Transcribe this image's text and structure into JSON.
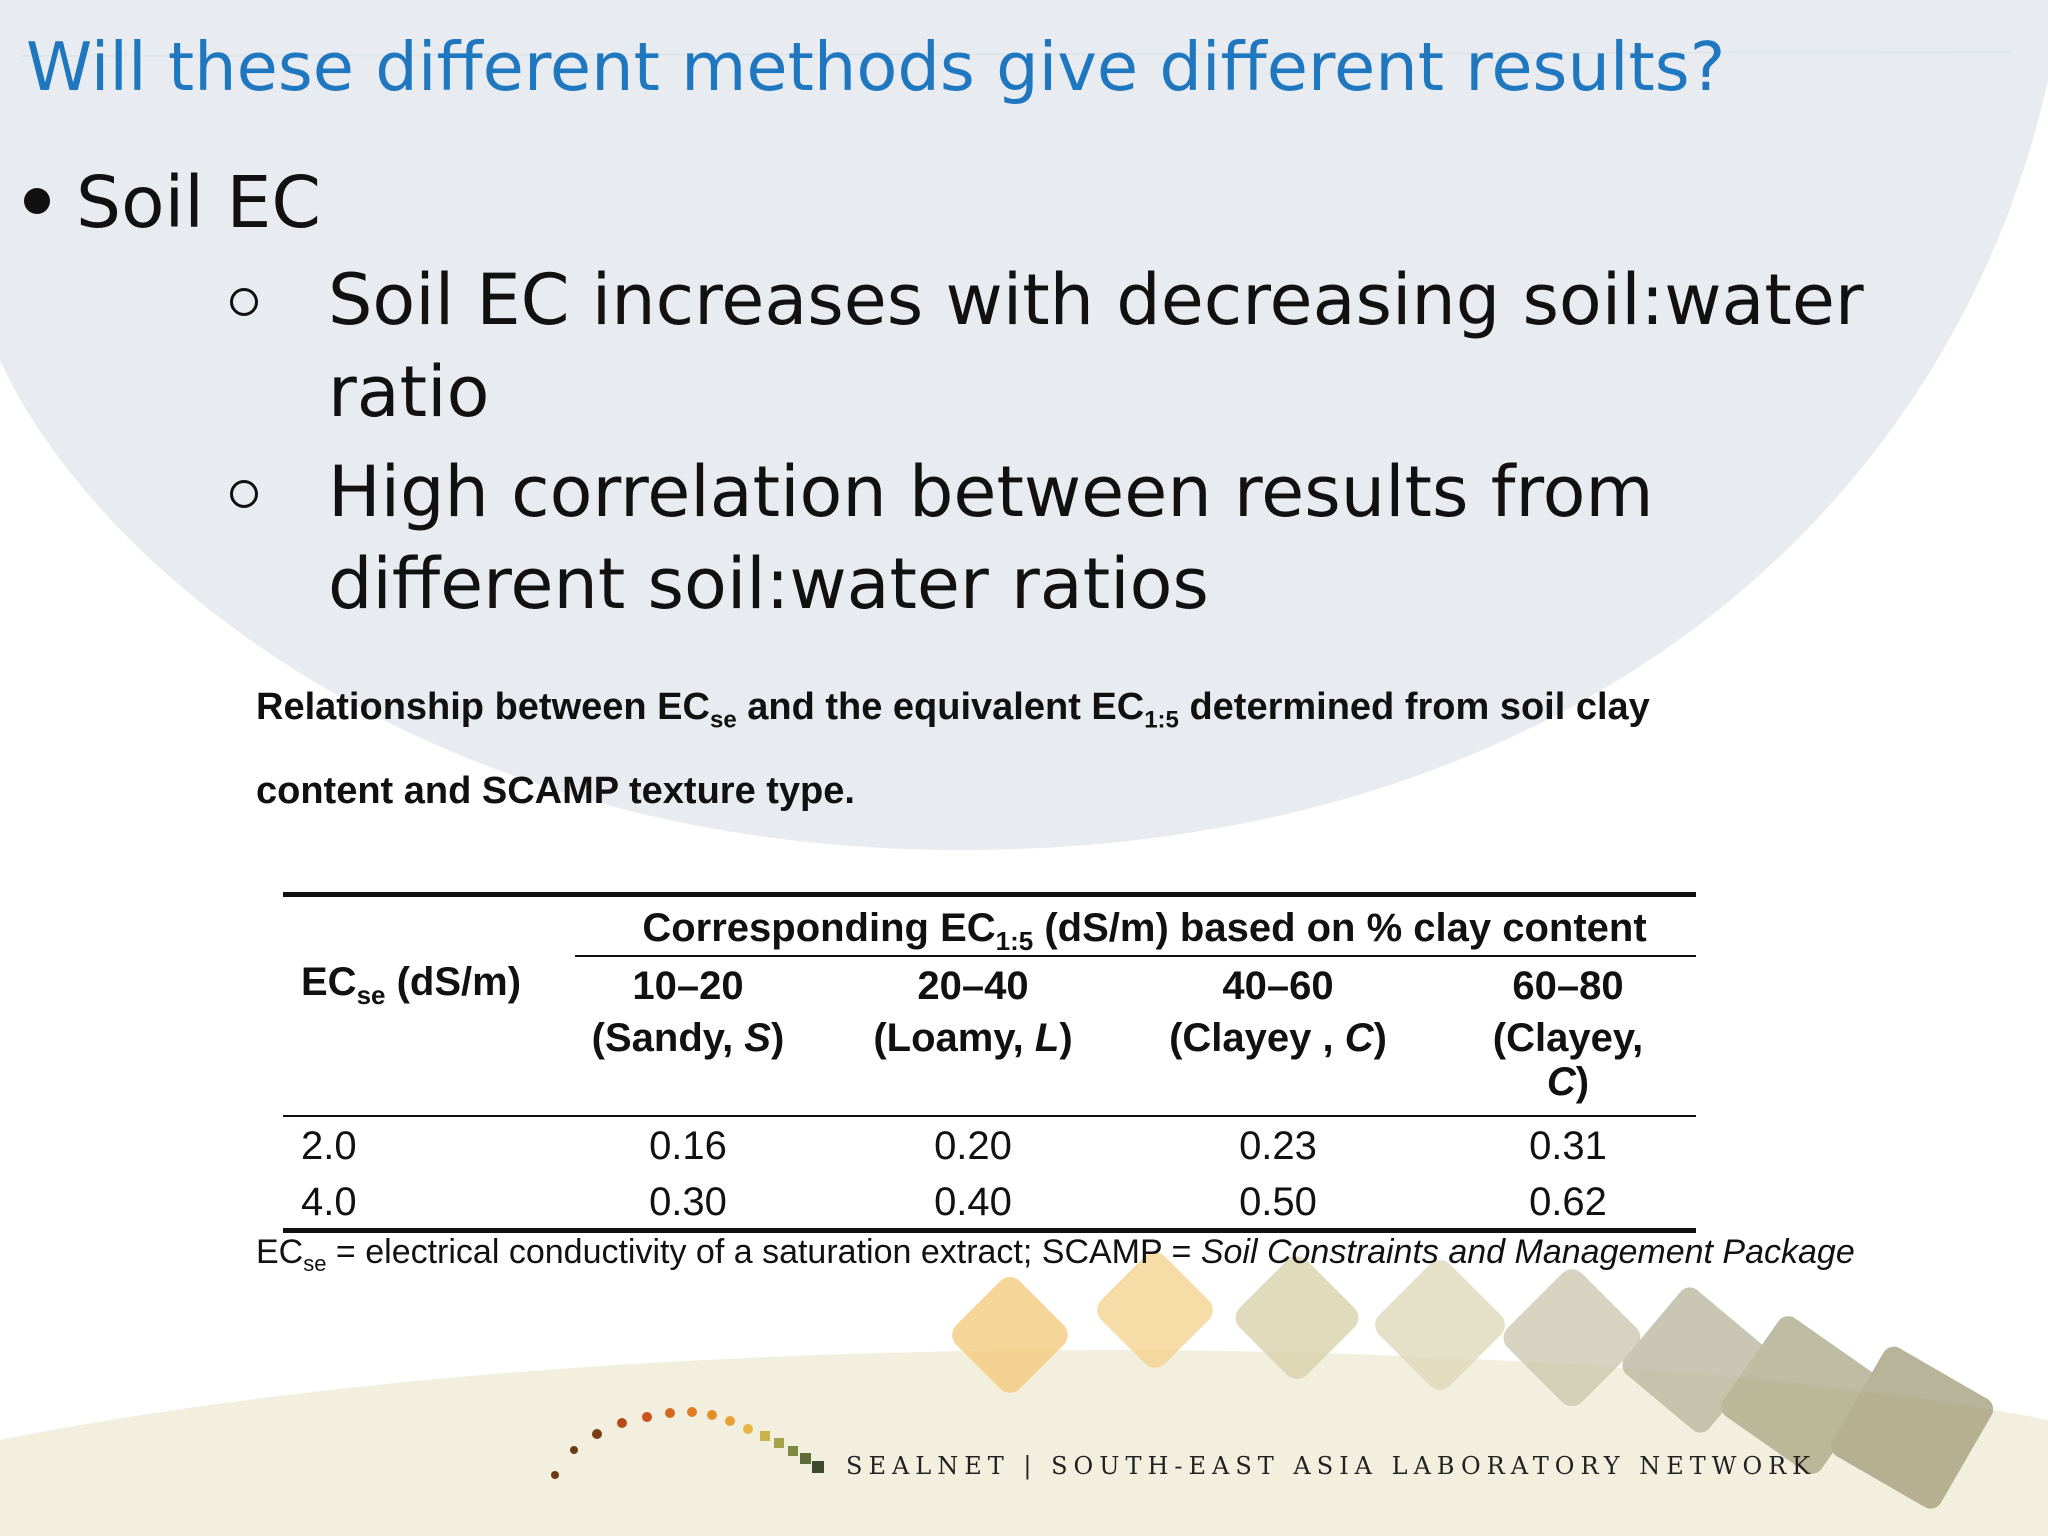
{
  "slide": {
    "title": "Will these different methods give different results?",
    "bullet": "Soil EC",
    "sub_bullets": [
      "Soil EC increases with decreasing soil:water ratio",
      "High correlation between results from different soil:water ratios"
    ]
  },
  "table_caption": {
    "part1": "Relationship between EC",
    "sub1": "se",
    "part2": " and the equivalent EC",
    "sub2": "1:5",
    "part3": " determined from soil clay content and SCAMP texture type."
  },
  "table": {
    "row_header_main": "EC",
    "row_header_sub": "se",
    "row_header_unit": " (dS/m)",
    "group_header_main": "Corresponding EC",
    "group_header_sub": "1:5",
    "group_header_rest": " (dS/m) based on % clay content",
    "columns": [
      {
        "range": "10–20",
        "texture": "(Sandy, ",
        "abbr": "S",
        "close": ")"
      },
      {
        "range": "20–40",
        "texture": "(Loamy, ",
        "abbr": "L",
        "close": ")"
      },
      {
        "range": "40–60",
        "texture": "(Clayey , ",
        "abbr": "C",
        "close": ")"
      },
      {
        "range": "60–80",
        "texture": "(Clayey,",
        "abbr": "C",
        "close": ")"
      }
    ],
    "rows": [
      {
        "ecse": "2.0",
        "values": [
          "0.16",
          "0.20",
          "0.23",
          "0.31"
        ]
      },
      {
        "ecse": "4.0",
        "values": [
          "0.30",
          "0.40",
          "0.50",
          "0.62"
        ]
      }
    ]
  },
  "footnote": {
    "main": "EC",
    "sub": "se",
    "text": " = electrical conductivity of a saturation extract; SCAMP = ",
    "italic": "Soil Constraints and Management Package"
  },
  "branding": {
    "logo_text": "SEALNET | SOUTH-EAST ASIA LABORATORY NETWORK",
    "colors": {
      "title": "#1f77bf",
      "arc": "#e9ecf1",
      "bottom_band": "#f3efdf"
    }
  }
}
